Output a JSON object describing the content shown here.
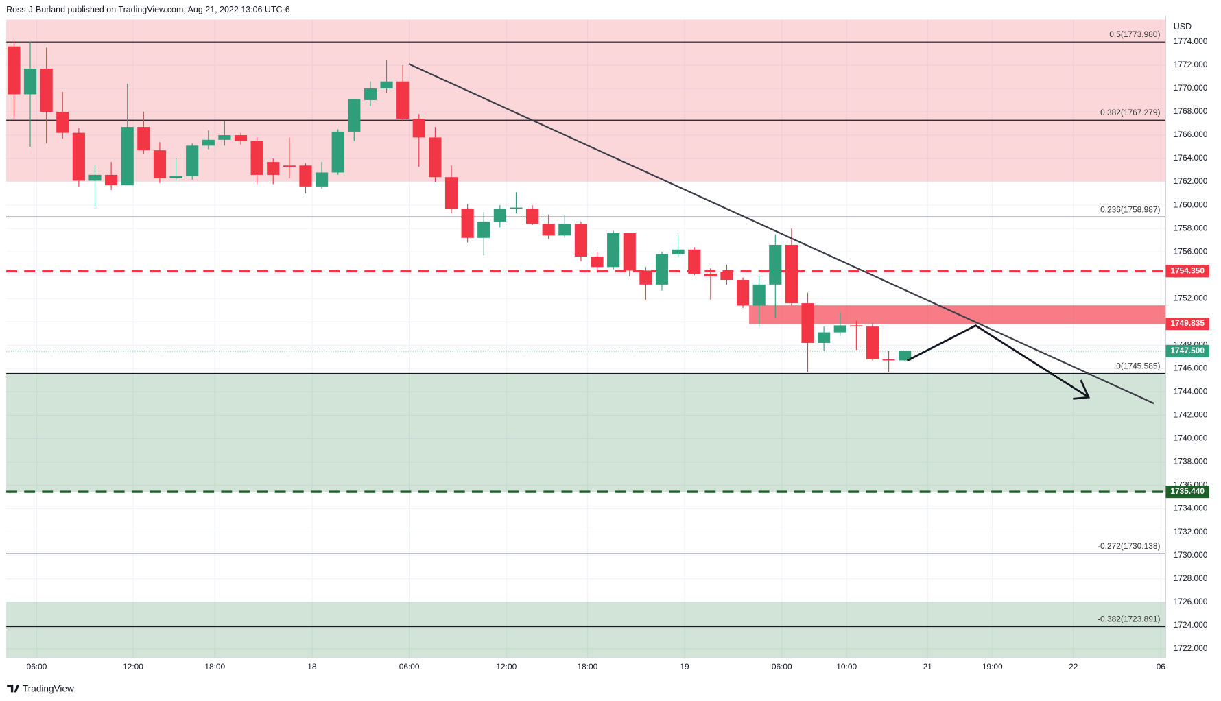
{
  "header": "Ross-J-Burland published on TradingView.com, Aug 21, 2022 13:06 UTC-6",
  "footer": "TradingView",
  "chart_data": {
    "type": "candlestick",
    "currency": "USD",
    "up_color": "#2e9e7b",
    "down_color": "#f23645",
    "xlim": [
      -0.48,
      71.1
    ],
    "ylim": [
      1721.2,
      1775.9
    ],
    "grid": true,
    "xticks": [
      {
        "value": 1.4,
        "label": "06:00"
      },
      {
        "value": 7.35,
        "label": "12:00"
      },
      {
        "value": 12.4,
        "label": "18:00"
      },
      {
        "value": 18.4,
        "label": "18"
      },
      {
        "value": 24.4,
        "label": "06:00"
      },
      {
        "value": 30.4,
        "label": "12:00"
      },
      {
        "value": 35.4,
        "label": "18:00"
      },
      {
        "value": 41.4,
        "label": "19"
      },
      {
        "value": 47.4,
        "label": "06:00"
      },
      {
        "value": 51.4,
        "label": "10:00"
      },
      {
        "value": 56.4,
        "label": "21"
      },
      {
        "value": 60.4,
        "label": "19:00"
      },
      {
        "value": 65.4,
        "label": "22"
      },
      {
        "value": 70.8,
        "label": "06"
      }
    ],
    "yticks": [
      {
        "value": 1722,
        "label": "1722.000"
      },
      {
        "value": 1724,
        "label": "1724.000"
      },
      {
        "value": 1726,
        "label": "1726.000"
      },
      {
        "value": 1728,
        "label": "1728.000"
      },
      {
        "value": 1730,
        "label": "1730.000"
      },
      {
        "value": 1732,
        "label": "1732.000"
      },
      {
        "value": 1734,
        "label": "1734.000"
      },
      {
        "value": 1736,
        "label": "1736.000"
      },
      {
        "value": 1738,
        "label": "1738.000"
      },
      {
        "value": 1740,
        "label": "1740.000"
      },
      {
        "value": 1742,
        "label": "1742.000"
      },
      {
        "value": 1744,
        "label": "1744.000"
      },
      {
        "value": 1746,
        "label": "1746.000"
      },
      {
        "value": 1748,
        "label": "1748.000"
      },
      {
        "value": 1750,
        "label": "1750.000"
      },
      {
        "value": 1752,
        "label": "1752.000"
      },
      {
        "value": 1754,
        "label": "1754.000"
      },
      {
        "value": 1756,
        "label": "1756.000"
      },
      {
        "value": 1758,
        "label": "1758.000"
      },
      {
        "value": 1760,
        "label": "1760.000"
      },
      {
        "value": 1762,
        "label": "1762.000"
      },
      {
        "value": 1764,
        "label": "1764.000"
      },
      {
        "value": 1766,
        "label": "1766.000"
      },
      {
        "value": 1768,
        "label": "1768.000"
      },
      {
        "value": 1770,
        "label": "1770.000"
      },
      {
        "value": 1772,
        "label": "1772.000"
      },
      {
        "value": 1774,
        "label": "1774.000"
      }
    ],
    "open": [
      1773.6,
      1769.5,
      1771.7,
      1768,
      1766.2,
      1762.1,
      1762.6,
      1761.7,
      1766.7,
      1764.7,
      1762.3,
      1762.5,
      1765.1,
      1765.6,
      1766,
      1765.5,
      1763.7,
      1763.4,
      1763.4,
      1761.6,
      1762.8,
      1766.3,
      1769,
      1770,
      1770.6,
      1767.4,
      1765.8,
      1762.4,
      1759.7,
      1757.2,
      1758.6,
      1759.7,
      1759.7,
      1758.4,
      1757.4,
      1758.4,
      1755.6,
      1754.7,
      1757.6,
      1754.4,
      1753.2,
      1755.8,
      1756.2,
      1754.1,
      1754.3,
      1753.6,
      1751.4,
      1753.2,
      1756.6,
      1751.6,
      1748.2,
      1749.1,
      1749.7,
      1749.6,
      1746.8,
      1746.7
    ],
    "high": [
      1774,
      1774,
      1773.5,
      1769.7,
      1766.6,
      1763.4,
      1763.7,
      1770.4,
      1768,
      1765.4,
      1764,
      1765.3,
      1766.4,
      1767.2,
      1766.2,
      1765.8,
      1764,
      1765.8,
      1763.6,
      1763.7,
      1766.5,
      1769,
      1770.6,
      1772.4,
      1772,
      1767.8,
      1766.7,
      1763.4,
      1760.1,
      1759.4,
      1760,
      1761.1,
      1760,
      1759.2,
      1759.2,
      1758.6,
      1756,
      1757.8,
      1757.6,
      1754.7,
      1756,
      1757.4,
      1756.4,
      1754.6,
      1754.9,
      1753.8,
      1753.9,
      1757.5,
      1758,
      1752.5,
      1749.6,
      1750.8,
      1750.1,
      1749.9,
      1747.5,
      1747.5
    ],
    "low": [
      1767.4,
      1765,
      1765.3,
      1765.7,
      1761.6,
      1759.9,
      1761.3,
      1761.7,
      1764.4,
      1761.9,
      1762.1,
      1762.2,
      1764.8,
      1765.1,
      1765.2,
      1761.8,
      1761.8,
      1762.3,
      1761,
      1761.4,
      1762.6,
      1765.5,
      1768.5,
      1769.6,
      1767.2,
      1763.3,
      1762,
      1759.3,
      1756.8,
      1755.7,
      1758.1,
      1759.3,
      1758.3,
      1757.1,
      1757.2,
      1755.2,
      1754.2,
      1754.5,
      1753.9,
      1751.9,
      1752.7,
      1755.5,
      1754,
      1751.9,
      1753.2,
      1751.2,
      1749.6,
      1750.3,
      1751.4,
      1745.7,
      1747.5,
      1748.8,
      1747.6,
      1746.7,
      1745.7,
      1746.6
    ],
    "close": [
      1769.5,
      1771.7,
      1768,
      1766.2,
      1762.1,
      1762.6,
      1761.7,
      1766.7,
      1764.7,
      1762.3,
      1762.5,
      1765.1,
      1765.6,
      1766,
      1765.5,
      1762.6,
      1762.6,
      1763.3,
      1761.6,
      1762.8,
      1766.3,
      1769.1,
      1770,
      1770.6,
      1767.4,
      1765.8,
      1762.4,
      1759.7,
      1757.2,
      1758.6,
      1759.7,
      1759.8,
      1758.4,
      1757.4,
      1758.4,
      1755.6,
      1754.7,
      1757.6,
      1754.4,
      1753.2,
      1755.8,
      1756.2,
      1754.1,
      1753.9,
      1753.6,
      1751.4,
      1753.2,
      1756.6,
      1751.6,
      1748.2,
      1749.1,
      1749.7,
      1749.6,
      1746.8,
      1746.7,
      1747.5
    ],
    "levels": [
      {
        "label": "0.5(1773.980)",
        "value": 1773.98
      },
      {
        "label": "0.382(1767.279)",
        "value": 1767.279
      },
      {
        "label": "0.236(1758.987)",
        "value": 1758.987
      },
      {
        "label": "0(1745.585)",
        "value": 1745.585
      },
      {
        "label": "-0.272(1730.138)",
        "value": 1730.138
      },
      {
        "label": "-0.382(1723.891)",
        "value": 1723.891
      }
    ],
    "price_lines": [
      {
        "value": 1754.35,
        "label": "1754.350",
        "color": "#f23645",
        "style": "dashed"
      },
      {
        "value": 1749.835,
        "label": "1749.835",
        "color": "#f23645",
        "style": "none"
      },
      {
        "value": 1747.5,
        "label": "1747.500",
        "color": "#2e9e7b",
        "style": "dotted"
      },
      {
        "value": 1735.44,
        "label": "1735.440",
        "color": "#1f5f2a",
        "style": "dashed"
      }
    ]
  }
}
